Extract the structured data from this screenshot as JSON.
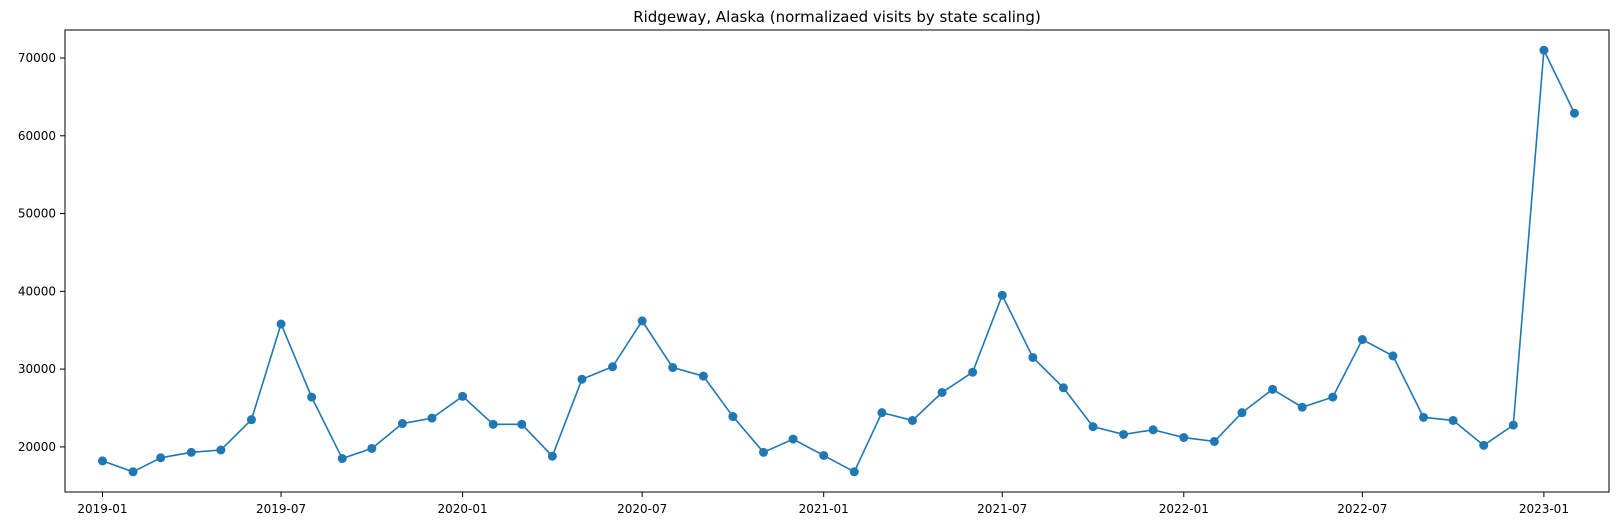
{
  "chart_data": {
    "type": "line",
    "title": "Ridgeway, Alaska (normalizaed visits by state scaling)",
    "xlabel": "",
    "ylabel": "",
    "grid": false,
    "legend": "none",
    "ylim": [
      14200,
      73600
    ],
    "xlim": [
      "2018-11-24",
      "2023-03-08"
    ],
    "x_ticks": [
      "2019-01",
      "2019-07",
      "2020-01",
      "2020-07",
      "2021-01",
      "2021-07",
      "2022-01",
      "2022-07",
      "2023-01"
    ],
    "y_ticks": [
      20000,
      30000,
      40000,
      50000,
      60000,
      70000
    ],
    "series": [
      {
        "color": "#1f77b4",
        "marker": "circle",
        "x": [
          "2019-01",
          "2019-02",
          "2019-03",
          "2019-04",
          "2019-05",
          "2019-06",
          "2019-07",
          "2019-08",
          "2019-09",
          "2019-10",
          "2019-11",
          "2019-12",
          "2020-01",
          "2020-02",
          "2020-03",
          "2020-04",
          "2020-05",
          "2020-06",
          "2020-07",
          "2020-08",
          "2020-09",
          "2020-10",
          "2020-11",
          "2020-12",
          "2021-01",
          "2021-02",
          "2021-03",
          "2021-04",
          "2021-05",
          "2021-06",
          "2021-07",
          "2021-08",
          "2021-09",
          "2021-10",
          "2021-11",
          "2021-12",
          "2022-01",
          "2022-02",
          "2022-03",
          "2022-04",
          "2022-05",
          "2022-06",
          "2022-07",
          "2022-08",
          "2022-09",
          "2022-10",
          "2022-11",
          "2022-12",
          "2023-01",
          "2023-02"
        ],
        "values": [
          18200,
          16800,
          18600,
          19300,
          19600,
          23500,
          35800,
          26400,
          18500,
          19800,
          23000,
          23700,
          26500,
          22900,
          22900,
          18800,
          28700,
          30300,
          36200,
          30200,
          29100,
          23900,
          19300,
          21000,
          18900,
          16800,
          24400,
          23400,
          27000,
          29600,
          39500,
          31500,
          27600,
          22600,
          21600,
          22200,
          21200,
          20700,
          24400,
          27400,
          25100,
          26400,
          33800,
          31700,
          23800,
          23400,
          20200,
          22800,
          71000,
          62900
        ]
      }
    ]
  }
}
